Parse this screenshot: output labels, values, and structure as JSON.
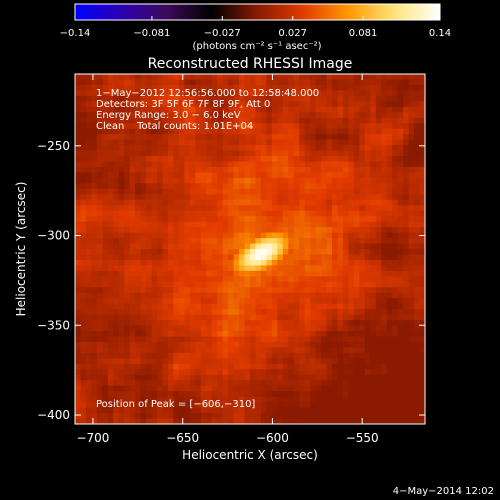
{
  "colors": {
    "background": "#000000",
    "text": "#ffffff",
    "colorscale": [
      "#0000ff",
      "#2b00b4",
      "#3c0a5a",
      "#000000",
      "#8a1a00",
      "#e23b00",
      "#ff9a00",
      "#ffe37a",
      "#ffffff"
    ]
  },
  "chart_data": {
    "type": "heatmap",
    "title": "Reconstructed RHESSI Image",
    "xlabel": "Heliocentric X (arcsec)",
    "ylabel": "Heliocentric Y (arcsec)",
    "xlim": [
      -710,
      -515
    ],
    "ylim": [
      -405,
      -210
    ],
    "x_ticks": [
      -700,
      -650,
      -600,
      -550
    ],
    "y_ticks": [
      -250,
      -300,
      -350,
      -400
    ],
    "x_tick_labels": [
      "−700",
      "−650",
      "−600",
      "−550"
    ],
    "y_tick_labels": [
      "−250",
      "−300",
      "−350",
      "−400"
    ],
    "colorbar": {
      "range": [
        -0.14,
        0.14
      ],
      "ticks": [
        -0.14,
        -0.081,
        -0.027,
        0.027,
        0.081,
        0.14
      ],
      "tick_labels": [
        "−0.14",
        "−0.081",
        "−0.027",
        "0.027",
        "0.081",
        "0.14"
      ],
      "label": "(photons cm⁻² s⁻¹ asec⁻²)"
    },
    "peak": {
      "x": -606,
      "y": -310,
      "value": 0.14
    },
    "source_orientation_deg": -30,
    "annotations": [
      "1−May−2012 12:56:56.000 to 12:58:48.000",
      "Detectors: 3F 5F 6F 7F 8F 9F, Att 0",
      "Energy Range: 3.0 − 6.0 keV",
      "Clean    Total counts: 1.01E+04",
      "Position of Peak = [−606,−310]"
    ],
    "footer": "4−May−2014 12:02",
    "grid": false,
    "legend": "none"
  }
}
